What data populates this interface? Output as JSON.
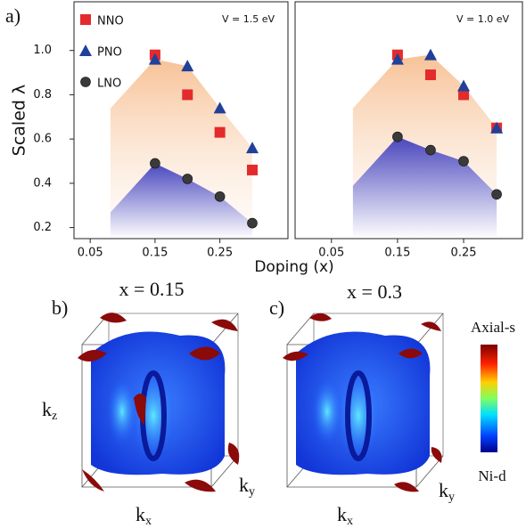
{
  "chart_data": [
    {
      "type": "scatter",
      "annotation": "V = 1.5 eV",
      "ylabel": "Scaled λ",
      "x": [
        0.15,
        0.2,
        0.25,
        0.3
      ],
      "xlim": [
        0.025,
        0.355
      ],
      "xticks": [
        0.05,
        0.15,
        0.25
      ],
      "ylim": [
        0.15,
        1.22
      ],
      "yticks": [
        0.2,
        0.4,
        0.6,
        0.8,
        {
          "value": 1,
          "label": "1.0"
        }
      ],
      "legend": "upper left",
      "series": [
        {
          "name": "NNO",
          "color": "#e32b2b",
          "marker": "square",
          "values": [
            0.98,
            0.8,
            0.63,
            0.46
          ]
        },
        {
          "name": "PNO",
          "color": "#21409a",
          "marker": "triangle",
          "values": [
            0.96,
            0.93,
            0.74,
            0.56
          ]
        },
        {
          "name": "LNO",
          "color": "#3a3a3a",
          "marker": "circle",
          "values": [
            0.49,
            0.42,
            0.34,
            0.22
          ]
        }
      ]
    },
    {
      "type": "scatter",
      "annotation": "V = 1.0 eV",
      "xlabel": "Doping (x)",
      "x": [
        0.15,
        0.2,
        0.25,
        0.3
      ],
      "xlim": [
        -0.005,
        0.339
      ],
      "xticks": [
        0.05,
        0.15,
        0.25
      ],
      "ylim": [
        0.15,
        1.22
      ],
      "series": [
        {
          "color": "#e32b2b",
          "marker": "square",
          "values": [
            0.98,
            0.89,
            0.8,
            0.65
          ]
        },
        {
          "color": "#21409a",
          "marker": "triangle",
          "values": [
            0.96,
            0.98,
            0.84,
            0.65
          ]
        },
        {
          "color": "#3a3a3a",
          "marker": "circle",
          "values": [
            0.61,
            0.55,
            0.5,
            0.35
          ]
        }
      ]
    }
  ],
  "panels": {
    "a": "a)",
    "b": "b)",
    "c": "c)",
    "b_title": "x = 0.15",
    "c_title": "x = 0.3",
    "kz": "kz",
    "kx": "kx",
    "ky": "ky",
    "colorbar_top": "Axial-s",
    "colorbar_bottom": "Ni-d"
  }
}
